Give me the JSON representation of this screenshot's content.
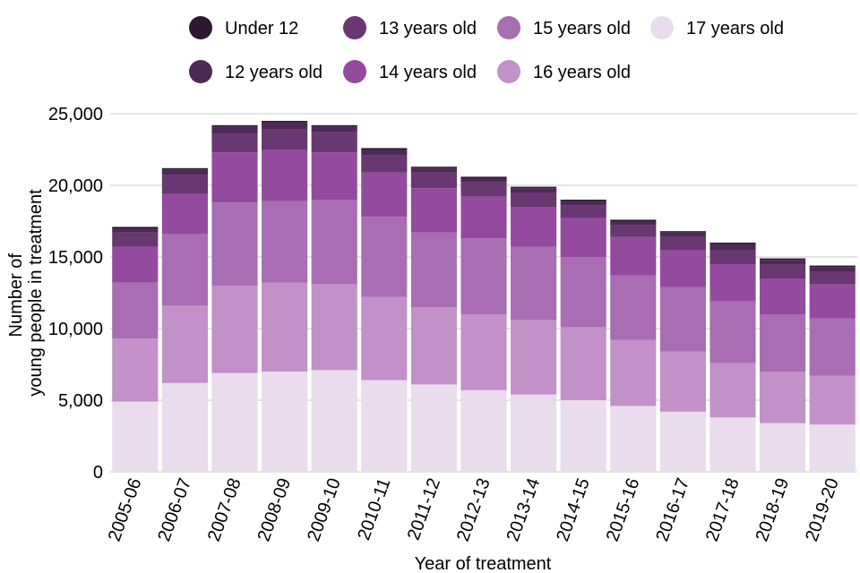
{
  "chart_data": {
    "type": "bar",
    "stacked": true,
    "xlabel": "Year of treatment",
    "ylabel_lines": [
      "Number of",
      "young people in treatment"
    ],
    "ylim": [
      0,
      25000
    ],
    "yticks": [
      0,
      5000,
      10000,
      15000,
      20000,
      25000
    ],
    "ytick_labels": [
      "0",
      "5,000",
      "10,000",
      "15,000",
      "20,000",
      "25,000"
    ],
    "grid": true,
    "legend_position": "top",
    "categories": [
      "2005-06",
      "2006-07",
      "2007-08",
      "2008-09",
      "2009-10",
      "2010-11",
      "2011-12",
      "2012-13",
      "2013-14",
      "2014-15",
      "2015-16",
      "2016-17",
      "2017-18",
      "2018-19",
      "2019-20"
    ],
    "series": [
      {
        "name": "17 years old",
        "color": "#e9dcec",
        "values": [
          4900,
          6200,
          6900,
          7000,
          7100,
          6400,
          6100,
          5700,
          5400,
          5000,
          4600,
          4200,
          3800,
          3400,
          3300
        ]
      },
      {
        "name": "16 years old",
        "color": "#c191c8",
        "values": [
          4400,
          5400,
          6100,
          6200,
          6000,
          5800,
          5400,
          5300,
          5200,
          5100,
          4600,
          4200,
          3800,
          3600,
          3400
        ]
      },
      {
        "name": "15 years old",
        "color": "#a96db3",
        "values": [
          3900,
          5000,
          5800,
          5700,
          5900,
          5600,
          5200,
          5300,
          5100,
          4900,
          4500,
          4500,
          4300,
          4000,
          4000
        ]
      },
      {
        "name": "14 years old",
        "color": "#944a9f",
        "values": [
          2500,
          2800,
          3500,
          3600,
          3300,
          3100,
          3100,
          2900,
          2800,
          2700,
          2700,
          2600,
          2600,
          2500,
          2400
        ]
      },
      {
        "name": "13 years old",
        "color": "#693771",
        "values": [
          1000,
          1300,
          1300,
          1400,
          1400,
          1200,
          1100,
          1000,
          1000,
          900,
          800,
          900,
          1000,
          1000,
          900
        ]
      },
      {
        "name": "12 years old",
        "color": "#4e2955",
        "values": [
          300,
          400,
          500,
          500,
          400,
          400,
          300,
          300,
          300,
          300,
          300,
          300,
          400,
          300,
          300
        ]
      },
      {
        "name": "Under 12",
        "color": "#2e1733",
        "values": [
          100,
          100,
          100,
          100,
          100,
          100,
          100,
          100,
          100,
          100,
          100,
          100,
          100,
          100,
          100
        ]
      }
    ],
    "legend": [
      {
        "name": "Under 12",
        "color": "#2e1733"
      },
      {
        "name": "13 years old",
        "color": "#693771"
      },
      {
        "name": "15 years old",
        "color": "#a96db3"
      },
      {
        "name": "17 years old",
        "color": "#e9dcec"
      },
      {
        "name": "12 years old",
        "color": "#4e2955"
      },
      {
        "name": "14 years old",
        "color": "#944a9f"
      },
      {
        "name": "16 years old",
        "color": "#c191c8"
      }
    ]
  }
}
